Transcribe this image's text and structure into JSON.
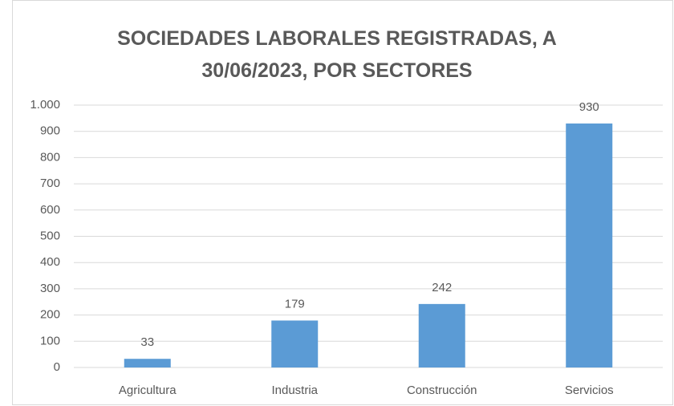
{
  "chart_data": {
    "type": "bar",
    "title": "SOCIEDADES LABORALES REGISTRADAS, A 30/06/2023, POR SECTORES",
    "categories": [
      "Agricultura",
      "Industria",
      "Construcción",
      "Servicios"
    ],
    "values": [
      33,
      179,
      242,
      930
    ],
    "color": "#5b9bd5",
    "ylim": [
      0,
      1000
    ],
    "yticks": [
      0,
      100,
      200,
      300,
      400,
      500,
      600,
      700,
      800,
      900,
      {
        "value": 1000,
        "label": "1.000"
      }
    ],
    "grid": true
  }
}
